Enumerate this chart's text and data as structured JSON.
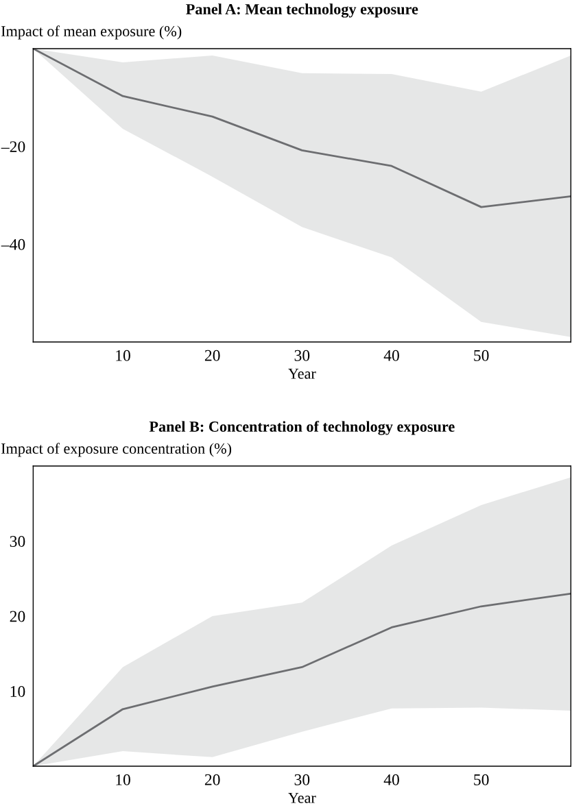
{
  "chart_data": [
    {
      "type": "line",
      "title": "Panel A: Mean technology exposure",
      "ylabel": "Impact of mean exposure (%)",
      "xlabel": "Year",
      "x": [
        0,
        10,
        20,
        30,
        40,
        50,
        60
      ],
      "series": [
        {
          "color": "#6d6e71",
          "values": [
            0,
            -9.7,
            -13.9,
            -20.8,
            -24.0,
            -32.4,
            -30.2
          ],
          "lower": [
            0,
            -16.4,
            -26.2,
            -36.5,
            -42.7,
            -55.9,
            -59.0
          ],
          "upper": [
            0,
            -2.8,
            -1.4,
            -5.0,
            -5.2,
            -8.8,
            -1.4
          ]
        }
      ],
      "xlim": [
        0,
        60
      ],
      "xticks": [
        10,
        20,
        30,
        40,
        50
      ],
      "ylim": [
        -60,
        0
      ],
      "yticks": [
        {
          "value": -20,
          "label": "–20"
        },
        {
          "value": -40,
          "label": "–40"
        }
      ],
      "grid": false,
      "legend": false
    },
    {
      "type": "line",
      "title": "Panel B: Concentration of technology exposure",
      "ylabel": "Impact of exposure concentration (%)",
      "xlabel": "Year",
      "x": [
        0,
        10,
        20,
        30,
        40,
        50,
        60
      ],
      "series": [
        {
          "color": "#6d6e71",
          "values": [
            0,
            7.6,
            10.6,
            13.2,
            18.5,
            21.3,
            23.0
          ],
          "lower": [
            0,
            2.0,
            1.2,
            4.6,
            7.7,
            7.8,
            7.4
          ],
          "upper": [
            0,
            13.2,
            20.0,
            21.8,
            29.4,
            34.8,
            38.5
          ]
        }
      ],
      "xlim": [
        0,
        60
      ],
      "xticks": [
        10,
        20,
        30,
        40,
        50
      ],
      "ylim": [
        0,
        40
      ],
      "yticks": [
        10,
        20,
        30
      ],
      "grid": false,
      "legend": false
    }
  ]
}
